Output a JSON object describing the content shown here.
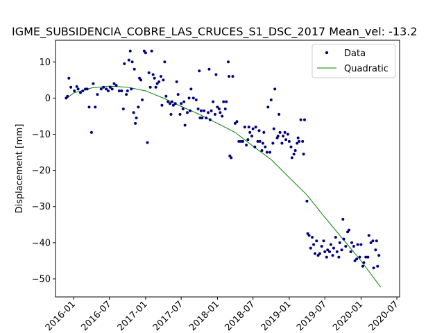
{
  "chart_data": {
    "type": "scatter",
    "title": "IGME_SUBSIDENCIA_COBRE_LAS_CRUCES_S1_DSC_2017     Mean_vel: -13.2",
    "xlabel": "",
    "ylabel": "Displacement [mm]",
    "xlim": [
      "2015-10-01",
      "2020-07-15"
    ],
    "ylim": [
      -55,
      16
    ],
    "x_ticks": [
      "2016-01",
      "2016-07",
      "2017-01",
      "2017-07",
      "2018-01",
      "2018-07",
      "2019-01",
      "2019-07",
      "2020-01",
      "2020-07"
    ],
    "y_ticks": [
      10,
      0,
      -10,
      -20,
      -30,
      -40,
      -50
    ],
    "y_tick_labels": [
      "10",
      "0",
      "−10",
      "−20",
      "−30",
      "−40",
      "−50"
    ],
    "legend": {
      "placement": "top-right",
      "entries": [
        "Data",
        "Quadratic"
      ]
    },
    "colors": {
      "data": "#00007f",
      "fit": "#008000"
    },
    "series": [
      {
        "name": "Data",
        "marker": "point",
        "points": [
          [
            "2015-11-24",
            0.0
          ],
          [
            "2015-12-01",
            0.5
          ],
          [
            "2015-12-08",
            5.5
          ],
          [
            "2015-12-18",
            3.0
          ],
          [
            "2016-01-05",
            2.0
          ],
          [
            "2016-01-17",
            3.2
          ],
          [
            "2016-01-24",
            2.5
          ],
          [
            "2016-02-05",
            1.5
          ],
          [
            "2016-02-17",
            2.0
          ],
          [
            "2016-03-01",
            2.5
          ],
          [
            "2016-03-10",
            2.5
          ],
          [
            "2016-03-20",
            -2.5
          ],
          [
            "2016-04-01",
            -9.5
          ],
          [
            "2016-04-10",
            4.0
          ],
          [
            "2016-04-20",
            -2.5
          ],
          [
            "2016-05-01",
            1.0
          ],
          [
            "2016-05-20",
            2.5
          ],
          [
            "2016-06-01",
            3.0
          ],
          [
            "2016-06-15",
            2.5
          ],
          [
            "2016-06-25",
            2.0
          ],
          [
            "2016-07-05",
            3.0
          ],
          [
            "2016-07-15",
            2.5
          ],
          [
            "2016-07-25",
            4.0
          ],
          [
            "2016-08-05",
            3.5
          ],
          [
            "2016-08-20",
            2.0
          ],
          [
            "2016-09-01",
            2.0
          ],
          [
            "2016-09-10",
            -3.0
          ],
          [
            "2016-09-15",
            9.5
          ],
          [
            "2016-09-25",
            1.0
          ],
          [
            "2016-10-01",
            2.0
          ],
          [
            "2016-10-08",
            10.5
          ],
          [
            "2016-10-15",
            13.0
          ],
          [
            "2016-10-20",
            2.5
          ],
          [
            "2016-10-25",
            10.0
          ],
          [
            "2016-11-01",
            -4.0
          ],
          [
            "2016-11-05",
            8.0
          ],
          [
            "2016-11-10",
            -7.0
          ],
          [
            "2016-11-15",
            -5.5
          ],
          [
            "2016-11-25",
            -2.5
          ],
          [
            "2016-12-01",
            5.5
          ],
          [
            "2016-12-08",
            5.0
          ],
          [
            "2016-12-15",
            -0.5
          ],
          [
            "2016-12-25",
            13.0
          ],
          [
            "2017-01-01",
            12.5
          ],
          [
            "2017-01-10",
            -12.3
          ],
          [
            "2017-01-18",
            7.0
          ],
          [
            "2017-01-25",
            3.0
          ],
          [
            "2017-02-01",
            13.0
          ],
          [
            "2017-02-08",
            6.5
          ],
          [
            "2017-02-15",
            5.5
          ],
          [
            "2017-02-22",
            3.0
          ],
          [
            "2017-03-01",
            4.0
          ],
          [
            "2017-03-10",
            4.5
          ],
          [
            "2017-03-20",
            6.0
          ],
          [
            "2017-03-25",
            -2.0
          ],
          [
            "2017-04-01",
            5.0
          ],
          [
            "2017-04-08",
            10.0
          ],
          [
            "2017-04-15",
            0.5
          ],
          [
            "2017-04-25",
            -1.0
          ],
          [
            "2017-05-05",
            -1.5
          ],
          [
            "2017-05-10",
            -4.5
          ],
          [
            "2017-05-15",
            -1.0
          ],
          [
            "2017-05-22",
            -2.0
          ],
          [
            "2017-06-01",
            -1.5
          ],
          [
            "2017-06-08",
            4.5
          ],
          [
            "2017-06-15",
            1.0
          ],
          [
            "2017-06-25",
            -4.5
          ],
          [
            "2017-07-01",
            -1.5
          ],
          [
            "2017-07-10",
            -3.0
          ],
          [
            "2017-07-15",
            -1.0
          ],
          [
            "2017-07-20",
            -7.5
          ],
          [
            "2017-08-01",
            -4.0
          ],
          [
            "2017-08-10",
            0.0
          ],
          [
            "2017-08-15",
            -3.5
          ],
          [
            "2017-08-20",
            2.5
          ],
          [
            "2017-09-01",
            0.0
          ],
          [
            "2017-09-15",
            -0.5
          ],
          [
            "2017-09-25",
            -3.0
          ],
          [
            "2017-10-01",
            7.5
          ],
          [
            "2017-10-05",
            -5.5
          ],
          [
            "2017-10-10",
            -3.5
          ],
          [
            "2017-10-15",
            -5.5
          ],
          [
            "2017-10-25",
            -3.5
          ],
          [
            "2017-11-05",
            -5.5
          ],
          [
            "2017-11-15",
            -4.0
          ],
          [
            "2017-11-20",
            8.0
          ],
          [
            "2017-11-25",
            -6.0
          ],
          [
            "2017-12-01",
            -3.5
          ],
          [
            "2017-12-10",
            -1.0
          ],
          [
            "2017-12-20",
            -4.5
          ],
          [
            "2017-12-25",
            6.5
          ],
          [
            "2018-01-01",
            -2.5
          ],
          [
            "2018-01-10",
            -3.0
          ],
          [
            "2018-01-15",
            -4.0
          ],
          [
            "2018-01-25",
            -5.0
          ],
          [
            "2018-02-01",
            -1.0
          ],
          [
            "2018-02-10",
            -3.0
          ],
          [
            "2018-02-15",
            -1.0
          ],
          [
            "2018-02-25",
            10.0
          ],
          [
            "2018-03-01",
            6.0
          ],
          [
            "2018-03-05",
            -16.0
          ],
          [
            "2018-03-12",
            -16.5
          ],
          [
            "2018-03-20",
            6.0
          ],
          [
            "2018-04-01",
            -7.0
          ],
          [
            "2018-04-10",
            -6.5
          ],
          [
            "2018-04-20",
            -12.0
          ],
          [
            "2018-05-01",
            -12.0
          ],
          [
            "2018-05-10",
            -12.0
          ],
          [
            "2018-05-20",
            -8.0
          ],
          [
            "2018-05-28",
            -13.0
          ],
          [
            "2018-06-05",
            -11.5
          ],
          [
            "2018-06-10",
            -8.0
          ],
          [
            "2018-06-15",
            -9.5
          ],
          [
            "2018-06-25",
            -10.5
          ],
          [
            "2018-07-01",
            -8.5
          ],
          [
            "2018-07-10",
            -13.5
          ],
          [
            "2018-07-15",
            -8.0
          ],
          [
            "2018-07-25",
            -12.0
          ],
          [
            "2018-08-01",
            -9.0
          ],
          [
            "2018-08-05",
            -12.0
          ],
          [
            "2018-08-15",
            -14.5
          ],
          [
            "2018-08-20",
            -12.5
          ],
          [
            "2018-08-25",
            -9.5
          ],
          [
            "2018-09-01",
            -13.5
          ],
          [
            "2018-09-10",
            -15.0
          ],
          [
            "2018-09-15",
            -2.5
          ],
          [
            "2018-09-25",
            -15.0
          ],
          [
            "2018-10-01",
            -0.5
          ],
          [
            "2018-10-10",
            -12.5
          ],
          [
            "2018-10-15",
            -8.5
          ],
          [
            "2018-10-20",
            2.5
          ],
          [
            "2018-11-01",
            -11.0
          ],
          [
            "2018-11-05",
            -10.5
          ],
          [
            "2018-11-10",
            -4.5
          ],
          [
            "2018-11-15",
            -9.5
          ],
          [
            "2018-11-25",
            -12.5
          ],
          [
            "2018-12-01",
            -10.5
          ],
          [
            "2018-12-10",
            -9.5
          ],
          [
            "2018-12-15",
            -11.5
          ],
          [
            "2018-12-25",
            -10.0
          ],
          [
            "2019-01-01",
            -12.0
          ],
          [
            "2019-01-10",
            -13.5
          ],
          [
            "2019-01-15",
            -16.5
          ],
          [
            "2019-01-25",
            -15.5
          ],
          [
            "2019-02-01",
            -14.5
          ],
          [
            "2019-02-10",
            -12.5
          ],
          [
            "2019-02-15",
            -11.0
          ],
          [
            "2019-02-20",
            -12.0
          ],
          [
            "2019-03-01",
            -6.0
          ],
          [
            "2019-03-10",
            -12.0
          ],
          [
            "2019-03-15",
            -15.5
          ],
          [
            "2019-03-20",
            -6.0
          ],
          [
            "2019-04-01",
            -28.5
          ],
          [
            "2019-04-05",
            -37.5
          ],
          [
            "2019-04-12",
            -38.0
          ],
          [
            "2019-04-20",
            -41.5
          ],
          [
            "2019-04-28",
            -38.5
          ],
          [
            "2019-05-05",
            -40.5
          ],
          [
            "2019-05-12",
            -43.0
          ],
          [
            "2019-05-20",
            -39.5
          ],
          [
            "2019-05-28",
            -43.5
          ],
          [
            "2019-06-05",
            -43.0
          ],
          [
            "2019-06-15",
            -41.0
          ],
          [
            "2019-06-25",
            -39.5
          ],
          [
            "2019-07-01",
            -42.5
          ],
          [
            "2019-07-10",
            -44.0
          ],
          [
            "2019-07-15",
            -42.0
          ],
          [
            "2019-07-25",
            -42.5
          ],
          [
            "2019-08-01",
            -40.5
          ],
          [
            "2019-08-10",
            -43.5
          ],
          [
            "2019-08-15",
            -41.5
          ],
          [
            "2019-08-25",
            -38.5
          ],
          [
            "2019-09-01",
            -42.5
          ],
          [
            "2019-09-10",
            -44.0
          ],
          [
            "2019-09-15",
            -40.0
          ],
          [
            "2019-09-25",
            -42.0
          ],
          [
            "2019-10-01",
            -33.5
          ],
          [
            "2019-10-05",
            -39.0
          ],
          [
            "2019-10-15",
            -41.0
          ],
          [
            "2019-10-25",
            -37.0
          ],
          [
            "2019-11-01",
            -36.5
          ],
          [
            "2019-11-10",
            -42.5
          ],
          [
            "2019-11-15",
            -40.0
          ],
          [
            "2019-11-25",
            -41.0
          ],
          [
            "2019-12-01",
            -45.0
          ],
          [
            "2019-12-10",
            -44.5
          ],
          [
            "2019-12-15",
            -40.5
          ],
          [
            "2019-12-25",
            -44.0
          ],
          [
            "2020-01-01",
            -40.5
          ],
          [
            "2020-01-10",
            -46.5
          ],
          [
            "2020-01-15",
            -45.5
          ],
          [
            "2020-01-25",
            -44.0
          ],
          [
            "2020-02-05",
            -44.0
          ],
          [
            "2020-02-10",
            -38.0
          ],
          [
            "2020-02-20",
            -40.0
          ],
          [
            "2020-03-01",
            -39.5
          ],
          [
            "2020-03-05",
            -47.0
          ],
          [
            "2020-03-15",
            -42.0
          ],
          [
            "2020-03-20",
            -39.5
          ],
          [
            "2020-03-25",
            -46.5
          ],
          [
            "2020-04-01",
            -43.5
          ]
        ]
      },
      {
        "name": "Quadratic",
        "marker": "line",
        "points": [
          [
            "2015-11-24",
            -0.2
          ],
          [
            "2016-01-01",
            1.4
          ],
          [
            "2016-04-01",
            2.8
          ],
          [
            "2016-07-01",
            3.3
          ],
          [
            "2016-10-01",
            3.0
          ],
          [
            "2017-01-01",
            2.0
          ],
          [
            "2017-04-01",
            0.0
          ],
          [
            "2017-07-01",
            -2.3
          ],
          [
            "2017-10-01",
            -4.5
          ],
          [
            "2018-01-01",
            -7.0
          ],
          [
            "2018-04-01",
            -9.5
          ],
          [
            "2018-07-01",
            -13.3
          ],
          [
            "2018-10-01",
            -17.0
          ],
          [
            "2019-01-01",
            -22.0
          ],
          [
            "2019-04-01",
            -26.8
          ],
          [
            "2019-07-01",
            -33.0
          ],
          [
            "2019-10-01",
            -39.0
          ],
          [
            "2020-01-01",
            -45.0
          ],
          [
            "2020-04-10",
            -52.3
          ]
        ]
      }
    ]
  }
}
